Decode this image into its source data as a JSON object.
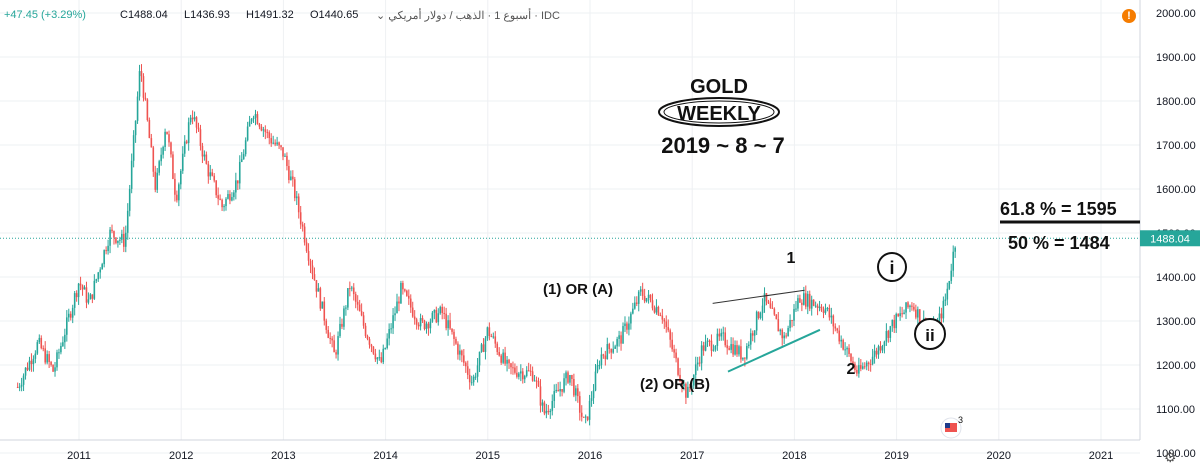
{
  "header": {
    "change": "+47.45 (+3.29%)",
    "close": "C1488.04",
    "low": "L1436.93",
    "high": "H1491.32",
    "open": "O1440.65",
    "symbol": "أسبوع 1 · الذهب / دولار أمريكي · IDC",
    "dropdown_icon": "chevron-down-icon",
    "warning_icon": "!"
  },
  "annotations": {
    "title_gold": "GOLD",
    "title_weekly": "WEEKLY",
    "title_date": "2019 ~ 8 ~ 7",
    "fib_618": "61.8 % = 1595",
    "fib_50": "50 % = 1484",
    "wave_1_or_a": "(1) OR (A)",
    "wave_2_or_b": "(2) OR  (B)",
    "wave_1": "1",
    "wave_2": "2",
    "wave_i": "i",
    "wave_ii": "ii",
    "event_badge": "3"
  },
  "chart_data": {
    "type": "candlestick",
    "interval": "weekly",
    "ylim": [
      970,
      2020
    ],
    "y_ticks": [
      1000,
      1100,
      1200,
      1300,
      1400,
      1500,
      1600,
      1700,
      1800,
      1900,
      2000
    ],
    "x_ticks": [
      "2011",
      "2012",
      "2013",
      "2014",
      "2015",
      "2016",
      "2017",
      "2018",
      "2019",
      "2020",
      "2021"
    ],
    "last_price": 1488.04,
    "last_price_label": "1488.04",
    "colors": {
      "up": "#26a69a",
      "down": "#ef5350",
      "price_line": "#26a69a",
      "axis_text": "#131722"
    },
    "path": [
      {
        "t": 2010.4,
        "p": 1150
      },
      {
        "t": 2010.6,
        "p": 1250
      },
      {
        "t": 2010.75,
        "p": 1185
      },
      {
        "t": 2011.0,
        "p": 1390
      },
      {
        "t": 2011.1,
        "p": 1340
      },
      {
        "t": 2011.3,
        "p": 1500
      },
      {
        "t": 2011.45,
        "p": 1480
      },
      {
        "t": 2011.6,
        "p": 1880
      },
      {
        "t": 2011.75,
        "p": 1600
      },
      {
        "t": 2011.85,
        "p": 1750
      },
      {
        "t": 2011.95,
        "p": 1580
      },
      {
        "t": 2012.1,
        "p": 1780
      },
      {
        "t": 2012.25,
        "p": 1650
      },
      {
        "t": 2012.4,
        "p": 1560
      },
      {
        "t": 2012.55,
        "p": 1620
      },
      {
        "t": 2012.7,
        "p": 1780
      },
      {
        "t": 2012.85,
        "p": 1720
      },
      {
        "t": 2013.0,
        "p": 1680
      },
      {
        "t": 2013.1,
        "p": 1600
      },
      {
        "t": 2013.3,
        "p": 1400
      },
      {
        "t": 2013.5,
        "p": 1220
      },
      {
        "t": 2013.65,
        "p": 1380
      },
      {
        "t": 2013.8,
        "p": 1280
      },
      {
        "t": 2013.95,
        "p": 1200
      },
      {
        "t": 2014.15,
        "p": 1370
      },
      {
        "t": 2014.35,
        "p": 1290
      },
      {
        "t": 2014.55,
        "p": 1320
      },
      {
        "t": 2014.85,
        "p": 1160
      },
      {
        "t": 2015.0,
        "p": 1280
      },
      {
        "t": 2015.2,
        "p": 1190
      },
      {
        "t": 2015.45,
        "p": 1180
      },
      {
        "t": 2015.55,
        "p": 1090
      },
      {
        "t": 2015.8,
        "p": 1180
      },
      {
        "t": 2015.95,
        "p": 1060
      },
      {
        "t": 2016.1,
        "p": 1220
      },
      {
        "t": 2016.3,
        "p": 1260
      },
      {
        "t": 2016.5,
        "p": 1365
      },
      {
        "t": 2016.7,
        "p": 1320
      },
      {
        "t": 2016.85,
        "p": 1200
      },
      {
        "t": 2016.95,
        "p": 1130
      },
      {
        "t": 2017.1,
        "p": 1240
      },
      {
        "t": 2017.3,
        "p": 1260
      },
      {
        "t": 2017.5,
        "p": 1220
      },
      {
        "t": 2017.7,
        "p": 1350
      },
      {
        "t": 2017.9,
        "p": 1260
      },
      {
        "t": 2018.05,
        "p": 1355
      },
      {
        "t": 2018.3,
        "p": 1330
      },
      {
        "t": 2018.45,
        "p": 1260
      },
      {
        "t": 2018.62,
        "p": 1180
      },
      {
        "t": 2018.8,
        "p": 1230
      },
      {
        "t": 2018.95,
        "p": 1290
      },
      {
        "t": 2019.15,
        "p": 1340
      },
      {
        "t": 2019.25,
        "p": 1300
      },
      {
        "t": 2019.38,
        "p": 1275
      },
      {
        "t": 2019.48,
        "p": 1350
      },
      {
        "t": 2019.58,
        "p": 1488
      }
    ],
    "shapes": {
      "resistance_line": [
        [
          2017.2,
          1340
        ],
        [
          2018.1,
          1370
        ]
      ],
      "support_line": [
        [
          2017.35,
          1185
        ],
        [
          2018.25,
          1280
        ]
      ],
      "fib_618_level": 1595,
      "fib_50_level": 1484
    }
  }
}
